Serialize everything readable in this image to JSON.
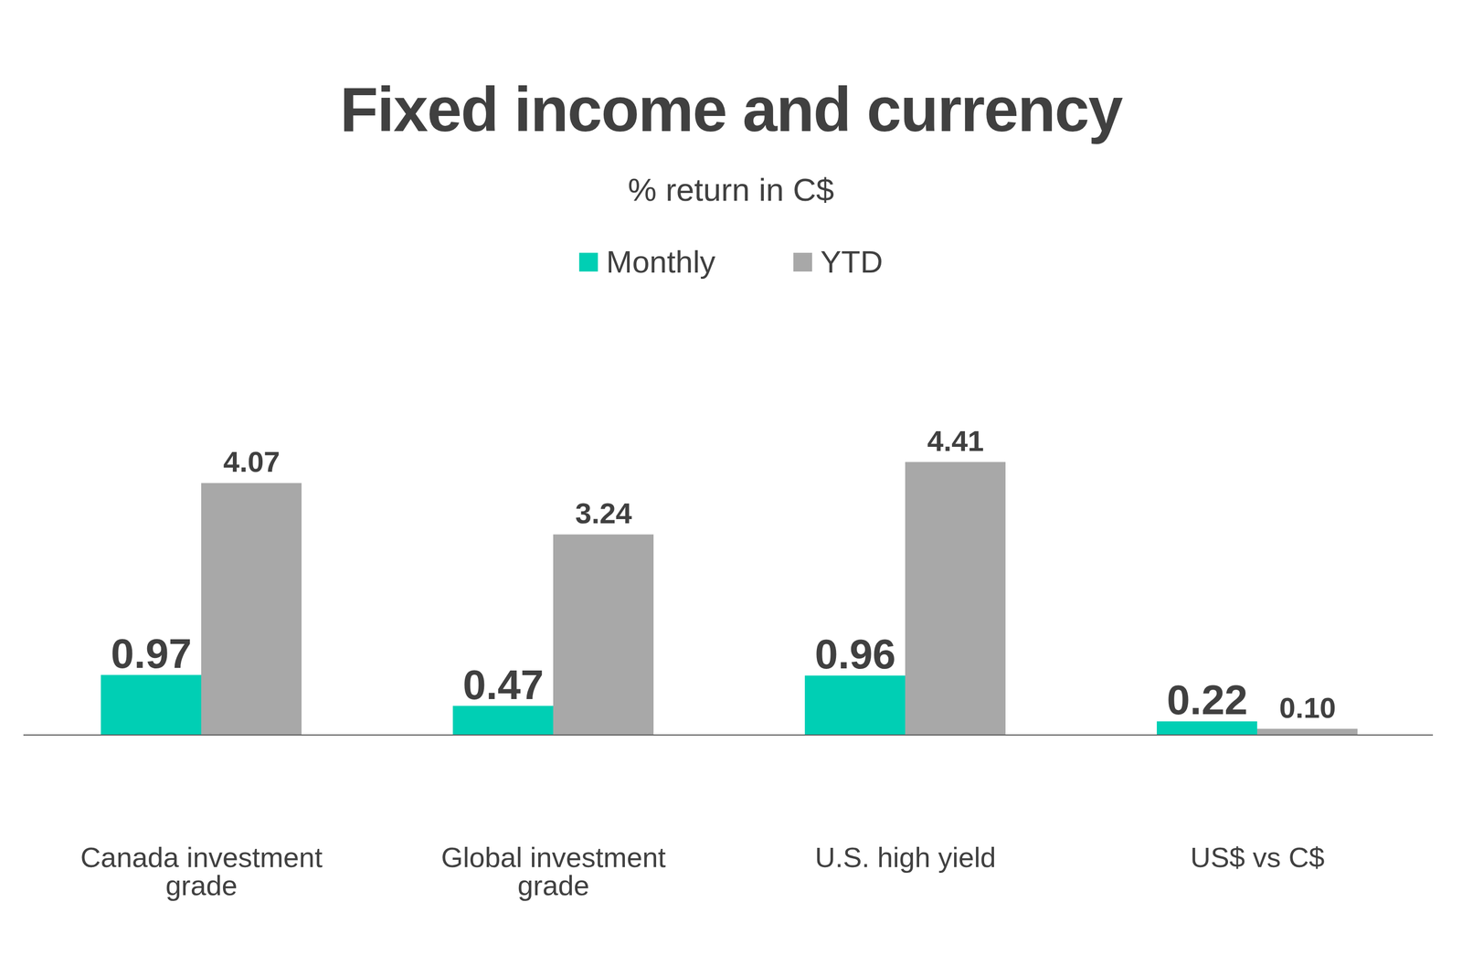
{
  "chart_data": {
    "type": "bar",
    "title": "Fixed income and currency",
    "subtitle": "% return in C$",
    "categories": [
      "Canada investment grade",
      "Global investment grade",
      "U.S. high yield",
      "US$ vs C$"
    ],
    "series": [
      {
        "name": "Monthly",
        "color": "#00cfb4",
        "values": [
          0.97,
          0.47,
          0.96,
          0.22
        ]
      },
      {
        "name": "YTD",
        "color": "#a8a8a8",
        "values": [
          4.07,
          3.24,
          4.41,
          0.1
        ],
        "value_labels": [
          "4.07",
          "3.24",
          "4.41",
          "0.10"
        ]
      }
    ],
    "ylim": [
      0,
      5
    ],
    "yticks": [],
    "grid": false,
    "data_labels": true,
    "tick_labels": "x",
    "legend": "top"
  }
}
